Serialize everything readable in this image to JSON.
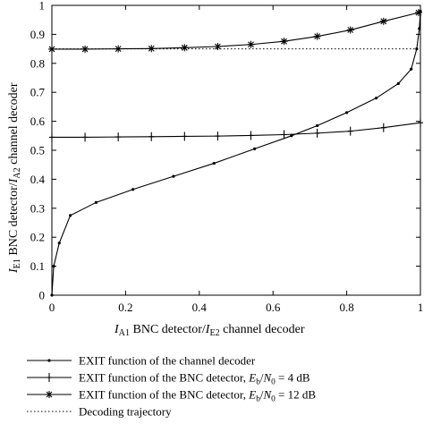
{
  "chart_data": {
    "type": "line",
    "xlabel": {
      "parts": [
        {
          "t": "I",
          "s": "italic"
        },
        {
          "t": "A1",
          "s": "sub"
        },
        {
          "t": " BNC detector/",
          "s": "normal"
        },
        {
          "t": "I",
          "s": "italic"
        },
        {
          "t": "E2",
          "s": "sub"
        },
        {
          "t": " channel decoder",
          "s": "normal"
        }
      ]
    },
    "ylabel": {
      "parts": [
        {
          "t": "I",
          "s": "italic"
        },
        {
          "t": "E1",
          "s": "sub"
        },
        {
          "t": " BNC detector/",
          "s": "normal"
        },
        {
          "t": "I",
          "s": "italic"
        },
        {
          "t": "A2",
          "s": "sub"
        },
        {
          "t": " channel decoder",
          "s": "normal"
        }
      ]
    },
    "xlim": [
      0,
      1
    ],
    "ylim": [
      0,
      1
    ],
    "x_ticks": [
      "0",
      "0.2",
      "0.4",
      "0.6",
      "0.8",
      "1"
    ],
    "y_ticks": [
      "0",
      "0.1",
      "0.2",
      "0.3",
      "0.4",
      "0.5",
      "0.6",
      "0.7",
      "0.8",
      "0.9",
      "1"
    ],
    "grid": false,
    "legend_position": "below",
    "series": [
      {
        "name": "EXIT function of the channel decoder",
        "marker": "dot",
        "dashed": false,
        "points": [
          [
            0,
            0
          ],
          [
            0.005,
            0.1
          ],
          [
            0.02,
            0.18
          ],
          [
            0.05,
            0.275
          ],
          [
            0.12,
            0.32
          ],
          [
            0.22,
            0.365
          ],
          [
            0.33,
            0.41
          ],
          [
            0.44,
            0.455
          ],
          [
            0.55,
            0.505
          ],
          [
            0.65,
            0.55
          ],
          [
            0.72,
            0.585
          ],
          [
            0.8,
            0.63
          ],
          [
            0.88,
            0.68
          ],
          [
            0.94,
            0.73
          ],
          [
            0.975,
            0.78
          ],
          [
            0.99,
            0.85
          ],
          [
            0.997,
            0.92
          ],
          [
            1.0,
            0.98
          ]
        ]
      },
      {
        "name": "EXIT function of the BNC detector, E_b/N_0 = 4 dB",
        "legend_parts": [
          {
            "t": "EXIT function of the BNC detector, ",
            "s": "normal"
          },
          {
            "t": "E",
            "s": "italic"
          },
          {
            "t": "b",
            "s": "sub"
          },
          {
            "t": "/",
            "s": "normal"
          },
          {
            "t": "N",
            "s": "italic"
          },
          {
            "t": "0",
            "s": "sub"
          },
          {
            "t": " = 4 dB",
            "s": "normal"
          }
        ],
        "marker": "plus",
        "dashed": false,
        "points": [
          [
            0,
            0.545
          ],
          [
            0.09,
            0.545
          ],
          [
            0.18,
            0.546
          ],
          [
            0.27,
            0.547
          ],
          [
            0.36,
            0.548
          ],
          [
            0.45,
            0.549
          ],
          [
            0.54,
            0.551
          ],
          [
            0.63,
            0.554
          ],
          [
            0.72,
            0.559
          ],
          [
            0.81,
            0.566
          ],
          [
            0.9,
            0.578
          ],
          [
            1.0,
            0.595
          ]
        ]
      },
      {
        "name": "EXIT function of the BNC detector, E_b/N_0 = 12 dB",
        "legend_parts": [
          {
            "t": "EXIT function of the BNC detector, ",
            "s": "normal"
          },
          {
            "t": "E",
            "s": "italic"
          },
          {
            "t": "b",
            "s": "sub"
          },
          {
            "t": "/",
            "s": "normal"
          },
          {
            "t": "N",
            "s": "italic"
          },
          {
            "t": "0",
            "s": "sub"
          },
          {
            "t": " = 12 dB",
            "s": "normal"
          }
        ],
        "marker": "star",
        "dashed": false,
        "points": [
          [
            0,
            0.849
          ],
          [
            0.09,
            0.849
          ],
          [
            0.18,
            0.85
          ],
          [
            0.27,
            0.851
          ],
          [
            0.36,
            0.854
          ],
          [
            0.45,
            0.858
          ],
          [
            0.54,
            0.865
          ],
          [
            0.63,
            0.876
          ],
          [
            0.72,
            0.893
          ],
          [
            0.81,
            0.915
          ],
          [
            0.9,
            0.945
          ],
          [
            0.995,
            0.975
          ]
        ]
      },
      {
        "name": "Decoding trajectory",
        "marker": "none",
        "dashed": true,
        "points": [
          [
            0,
            0.85
          ],
          [
            0.995,
            0.85
          ]
        ]
      }
    ]
  }
}
